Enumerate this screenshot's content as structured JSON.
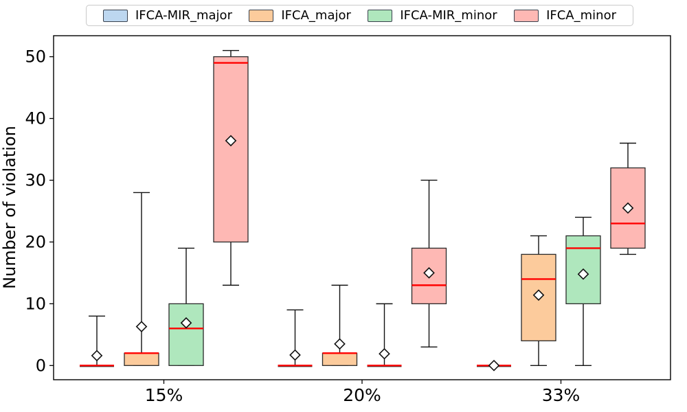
{
  "figure": {
    "kind": "grouped boxplot",
    "background": "#ffffff"
  },
  "legend": {
    "position": "top-center",
    "items": [
      {
        "label": "IFCA-MIR_major",
        "color": "#bdd7f0"
      },
      {
        "label": "IFCA_major",
        "color": "#fccb9c"
      },
      {
        "label": "IFCA-MIR_minor",
        "color": "#afe7bd"
      },
      {
        "label": "IFCA_minor",
        "color": "#feb8b4"
      }
    ]
  },
  "chart_data": {
    "type": "boxplot",
    "title": "",
    "xlabel": "",
    "ylabel": "Number of violation",
    "categories": [
      "15%",
      "20%",
      "33%"
    ],
    "yticks": [
      0,
      10,
      20,
      30,
      40,
      50
    ],
    "ylim": [
      -2.3,
      53.4
    ],
    "grid": false,
    "legend_position": "top-center-outside",
    "median_color": "#ff0000",
    "box_edge_color": "#2a2a2a",
    "whisker_color": "#111111",
    "mean_marker": "white diamond",
    "series": [
      {
        "name": "IFCA-MIR_major",
        "fill": "#bdd7f0",
        "stats": [
          {
            "whislo": 0,
            "q1": 0,
            "med": 0,
            "q3": 0,
            "whishi": 8,
            "mean": 1.6
          },
          {
            "whislo": 0,
            "q1": 0,
            "med": 0,
            "q3": 0,
            "whishi": 9,
            "mean": 1.7
          },
          {
            "whislo": 0,
            "q1": 0,
            "med": 0,
            "q3": 0,
            "whishi": 0,
            "mean": 0
          }
        ]
      },
      {
        "name": "IFCA_major",
        "fill": "#fccb9c",
        "stats": [
          {
            "whislo": 0,
            "q1": 0,
            "med": 2,
            "q3": 2,
            "whishi": 28,
            "mean": 6.3
          },
          {
            "whislo": 0,
            "q1": 0,
            "med": 2,
            "q3": 2,
            "whishi": 13,
            "mean": 3.5
          },
          {
            "whislo": 0,
            "q1": 4,
            "med": 14,
            "q3": 18,
            "whishi": 21,
            "mean": 11.4
          }
        ]
      },
      {
        "name": "IFCA-MIR_minor",
        "fill": "#afe7bd",
        "stats": [
          {
            "whislo": 0,
            "q1": 0,
            "med": 6,
            "q3": 10,
            "whishi": 19,
            "mean": 6.9
          },
          {
            "whislo": 0,
            "q1": 0,
            "med": 0,
            "q3": 0,
            "whishi": 10,
            "mean": 1.9
          },
          {
            "whislo": 0,
            "q1": 10,
            "med": 19,
            "q3": 21,
            "whishi": 24,
            "mean": 14.8
          }
        ]
      },
      {
        "name": "IFCA_minor",
        "fill": "#feb8b4",
        "stats": [
          {
            "whislo": 13,
            "q1": 20,
            "med": 49,
            "q3": 50,
            "whishi": 51,
            "mean": 36.4
          },
          {
            "whislo": 3,
            "q1": 10,
            "med": 13,
            "q3": 19,
            "whishi": 30,
            "mean": 15.0
          },
          {
            "whislo": 18,
            "q1": 19,
            "med": 23,
            "q3": 32,
            "whishi": 36,
            "mean": 25.5
          }
        ]
      }
    ]
  }
}
